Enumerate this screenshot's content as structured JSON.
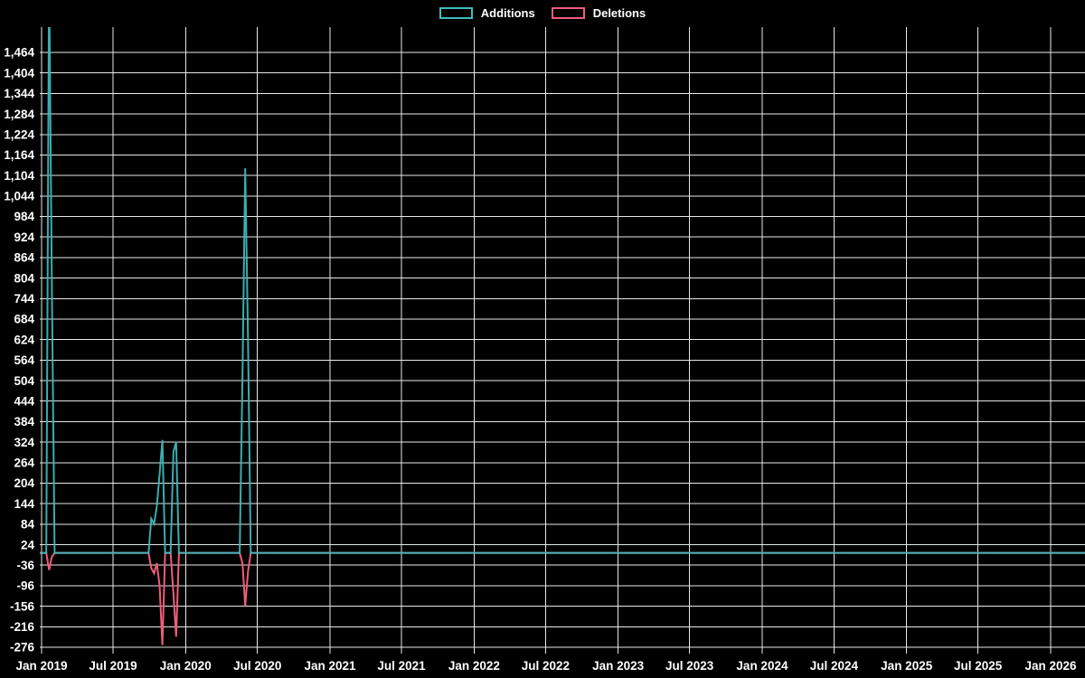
{
  "chart_data": {
    "type": "line",
    "title": "",
    "legend_position": "top-center",
    "background_color": "#000000",
    "grid": true,
    "grid_color": "#e8e8e8",
    "text_color": "#ffffff",
    "x_axis": {
      "ticks": [
        {
          "label": "Jan 2019",
          "date": "2019-01-01"
        },
        {
          "label": "Jul 2019",
          "date": "2019-07-01"
        },
        {
          "label": "Jan 2020",
          "date": "2020-01-01"
        },
        {
          "label": "Jul 2020",
          "date": "2020-07-01"
        },
        {
          "label": "Jan 2021",
          "date": "2021-01-01"
        },
        {
          "label": "Jul 2021",
          "date": "2021-07-01"
        },
        {
          "label": "Jan 2022",
          "date": "2022-01-01"
        },
        {
          "label": "Jul 2022",
          "date": "2022-07-01"
        },
        {
          "label": "Jan 2023",
          "date": "2023-01-01"
        },
        {
          "label": "Jul 2023",
          "date": "2023-07-01"
        },
        {
          "label": "Jan 2024",
          "date": "2024-01-01"
        },
        {
          "label": "Jul 2024",
          "date": "2024-07-01"
        },
        {
          "label": "Jan 2025",
          "date": "2025-01-01"
        },
        {
          "label": "Jul 2025",
          "date": "2025-07-01"
        },
        {
          "label": "Jan 2026",
          "date": "2026-01-01"
        }
      ]
    },
    "y_axis": {
      "min": -276,
      "max": 1464,
      "tick_step": 60,
      "tick_format": "thousands-comma",
      "tick_labels_top_to_bottom": [
        "1,464",
        "1,404",
        "1,344",
        "1,284",
        "1,224",
        "1,164",
        "1,104",
        "1,044",
        "984",
        "924",
        "864",
        "804",
        "744",
        "684",
        "624",
        "564",
        "504",
        "444",
        "384",
        "324",
        "264",
        "204",
        "144",
        "84",
        "24",
        "-36",
        "-96",
        "-156",
        "-216",
        "-276"
      ]
    },
    "series": [
      {
        "name": "Additions",
        "color": "#3fbcbf",
        "baseline_value": 0,
        "cadence": "weekly",
        "points": [
          {
            "date": "2019-01-20",
            "value": 1700,
            "clipped_above_plot": true
          },
          {
            "date": "2019-01-27",
            "value": 795
          },
          {
            "date": "2019-10-06",
            "value": 100
          },
          {
            "date": "2019-10-13",
            "value": 85
          },
          {
            "date": "2019-10-20",
            "value": 135
          },
          {
            "date": "2019-10-27",
            "value": 230
          },
          {
            "date": "2019-11-03",
            "value": 330
          },
          {
            "date": "2019-12-01",
            "value": 295
          },
          {
            "date": "2019-12-08",
            "value": 325
          },
          {
            "date": "2020-05-24",
            "value": 520
          },
          {
            "date": "2020-05-31",
            "value": 1125
          },
          {
            "date": "2020-06-07",
            "value": 625
          }
        ]
      },
      {
        "name": "Deletions",
        "color": "#ef5d7c",
        "baseline_value": 0,
        "cadence": "weekly",
        "points": [
          {
            "date": "2019-01-20",
            "value": -50
          },
          {
            "date": "2019-01-27",
            "value": -12
          },
          {
            "date": "2019-10-06",
            "value": -45
          },
          {
            "date": "2019-10-13",
            "value": -60
          },
          {
            "date": "2019-10-20",
            "value": -30
          },
          {
            "date": "2019-10-27",
            "value": -95
          },
          {
            "date": "2019-11-03",
            "value": -270
          },
          {
            "date": "2019-12-01",
            "value": -120
          },
          {
            "date": "2019-12-08",
            "value": -245
          },
          {
            "date": "2020-05-24",
            "value": -30
          },
          {
            "date": "2020-05-31",
            "value": -155
          },
          {
            "date": "2020-06-07",
            "value": -55
          }
        ]
      }
    ],
    "notes": "Weekly additions/deletions frequency chart on black background. All weeks not listed have value 0 (flat lines at zero span the full width). The first Additions spike in Jan 2019 exceeds the visible y-range and is clipped at the top of the plot."
  }
}
